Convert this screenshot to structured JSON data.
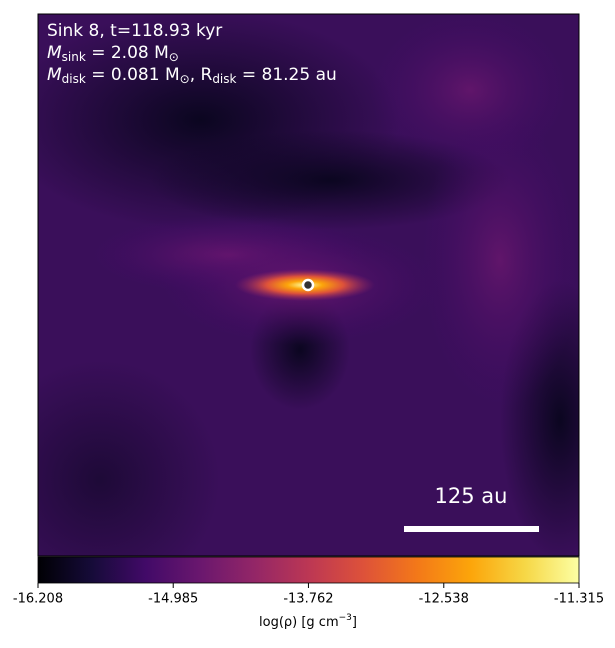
{
  "chart_data": {
    "type": "image",
    "annotation_line1": "Sink 8, t=118.93 kyr",
    "annotation_line2": {
      "symbol": "M",
      "subscript": "sink",
      "text": " = 2.08 M",
      "unit_subscript": "⊙"
    },
    "annotation_line3": {
      "symbol": "M",
      "subscript": "disk",
      "text": " = 0.081 M",
      "unit_subscript": "⊙",
      "text2": ", R",
      "subscript2": "disk",
      "text3": " = 81.25 au"
    },
    "scale_bar_label": "125 au",
    "colorbar_label": {
      "text": "log(ρ) [g cm",
      "superscript": "−3",
      "end": "]"
    },
    "colormap": "inferno",
    "clim": [
      -16.208,
      -11.315
    ],
    "cticks": [
      -16.208,
      -14.985,
      -13.762,
      -12.538,
      -11.315
    ]
  }
}
